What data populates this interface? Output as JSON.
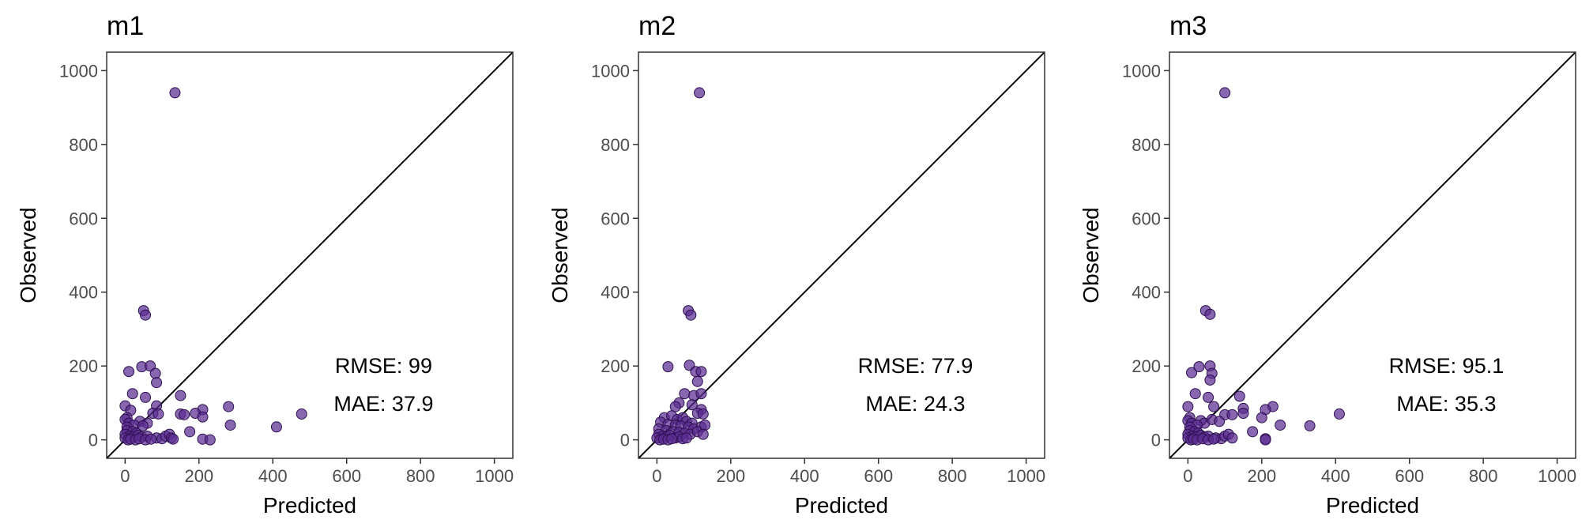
{
  "chart_data": [
    {
      "type": "scatter",
      "title": "m1",
      "xlabel": "Predicted",
      "ylabel": "Observed",
      "xlim": [
        -50,
        1050
      ],
      "ylim": [
        -50,
        1050
      ],
      "xticks": [
        "0",
        "200",
        "400",
        "600",
        "800",
        "1000"
      ],
      "yticks": [
        "0",
        "200",
        "400",
        "600",
        "800",
        "1000"
      ],
      "reference_line": "y = x",
      "annotations": [
        "RMSE: 99",
        "MAE: 37.9"
      ],
      "point_color": "#5c2c91",
      "points": [
        [
          135,
          940
        ],
        [
          50,
          350
        ],
        [
          55,
          338
        ],
        [
          10,
          185
        ],
        [
          45,
          198
        ],
        [
          68,
          200
        ],
        [
          82,
          180
        ],
        [
          85,
          155
        ],
        [
          20,
          125
        ],
        [
          55,
          115
        ],
        [
          150,
          120
        ],
        [
          85,
          92
        ],
        [
          0,
          92
        ],
        [
          15,
          80
        ],
        [
          280,
          90
        ],
        [
          210,
          82
        ],
        [
          150,
          70
        ],
        [
          160,
          68
        ],
        [
          190,
          72
        ],
        [
          210,
          62
        ],
        [
          5,
          60
        ],
        [
          0,
          55
        ],
        [
          40,
          50
        ],
        [
          60,
          45
        ],
        [
          75,
          72
        ],
        [
          90,
          70
        ],
        [
          10,
          45
        ],
        [
          25,
          40
        ],
        [
          5,
          35
        ],
        [
          48,
          38
        ],
        [
          285,
          40
        ],
        [
          410,
          35
        ],
        [
          478,
          70
        ],
        [
          175,
          22
        ],
        [
          5,
          25
        ],
        [
          20,
          22
        ],
        [
          30,
          18
        ],
        [
          0,
          15
        ],
        [
          12,
          10
        ],
        [
          22,
          8
        ],
        [
          35,
          12
        ],
        [
          45,
          8
        ],
        [
          60,
          10
        ],
        [
          85,
          5
        ],
        [
          100,
          3
        ],
        [
          110,
          10
        ],
        [
          120,
          15
        ],
        [
          125,
          5
        ],
        [
          130,
          2
        ],
        [
          210,
          2
        ],
        [
          230,
          0
        ],
        [
          0,
          5
        ],
        [
          8,
          0
        ],
        [
          15,
          2
        ],
        [
          28,
          0
        ],
        [
          38,
          3
        ],
        [
          55,
          0
        ],
        [
          70,
          2
        ]
      ]
    },
    {
      "type": "scatter",
      "title": "m2",
      "xlabel": "Predicted",
      "ylabel": "Observed",
      "xlim": [
        -50,
        1050
      ],
      "ylim": [
        -50,
        1050
      ],
      "xticks": [
        "0",
        "200",
        "400",
        "600",
        "800",
        "1000"
      ],
      "yticks": [
        "0",
        "200",
        "400",
        "600",
        "800",
        "1000"
      ],
      "reference_line": "y = x",
      "annotations": [
        "RMSE: 77.9",
        "MAE: 24.3"
      ],
      "point_color": "#5c2c91",
      "points": [
        [
          115,
          940
        ],
        [
          85,
          350
        ],
        [
          92,
          338
        ],
        [
          30,
          198
        ],
        [
          88,
          202
        ],
        [
          105,
          185
        ],
        [
          120,
          185
        ],
        [
          110,
          158
        ],
        [
          75,
          125
        ],
        [
          100,
          120
        ],
        [
          120,
          125
        ],
        [
          60,
          100
        ],
        [
          95,
          95
        ],
        [
          120,
          82
        ],
        [
          50,
          90
        ],
        [
          110,
          72
        ],
        [
          125,
          70
        ],
        [
          20,
          60
        ],
        [
          40,
          65
        ],
        [
          55,
          55
        ],
        [
          70,
          60
        ],
        [
          80,
          50
        ],
        [
          95,
          45
        ],
        [
          10,
          48
        ],
        [
          30,
          42
        ],
        [
          50,
          40
        ],
        [
          65,
          38
        ],
        [
          85,
          35
        ],
        [
          100,
          30
        ],
        [
          120,
          35
        ],
        [
          130,
          40
        ],
        [
          5,
          30
        ],
        [
          25,
          25
        ],
        [
          45,
          22
        ],
        [
          60,
          20
        ],
        [
          75,
          18
        ],
        [
          90,
          15
        ],
        [
          110,
          22
        ],
        [
          125,
          15
        ],
        [
          5,
          15
        ],
        [
          15,
          10
        ],
        [
          25,
          8
        ],
        [
          35,
          12
        ],
        [
          50,
          5
        ],
        [
          60,
          8
        ],
        [
          70,
          3
        ],
        [
          80,
          5
        ],
        [
          0,
          5
        ],
        [
          8,
          0
        ],
        [
          18,
          2
        ],
        [
          30,
          0
        ],
        [
          40,
          3
        ]
      ]
    },
    {
      "type": "scatter",
      "title": "m3",
      "xlabel": "Predicted",
      "ylabel": "Observed",
      "xlim": [
        -50,
        1050
      ],
      "ylim": [
        -50,
        1050
      ],
      "xticks": [
        "0",
        "200",
        "400",
        "600",
        "800",
        "1000"
      ],
      "yticks": [
        "0",
        "200",
        "400",
        "600",
        "800",
        "1000"
      ],
      "reference_line": "y = x",
      "annotations": [
        "RMSE: 95.1",
        "MAE: 35.3"
      ],
      "point_color": "#5c2c91",
      "points": [
        [
          100,
          940
        ],
        [
          48,
          350
        ],
        [
          60,
          340
        ],
        [
          10,
          182
        ],
        [
          30,
          198
        ],
        [
          60,
          200
        ],
        [
          65,
          180
        ],
        [
          60,
          162
        ],
        [
          20,
          125
        ],
        [
          55,
          115
        ],
        [
          140,
          118
        ],
        [
          70,
          90
        ],
        [
          0,
          90
        ],
        [
          230,
          90
        ],
        [
          210,
          82
        ],
        [
          150,
          85
        ],
        [
          150,
          72
        ],
        [
          100,
          68
        ],
        [
          120,
          68
        ],
        [
          200,
          60
        ],
        [
          5,
          60
        ],
        [
          0,
          52
        ],
        [
          35,
          52
        ],
        [
          45,
          45
        ],
        [
          65,
          55
        ],
        [
          85,
          50
        ],
        [
          10,
          45
        ],
        [
          25,
          40
        ],
        [
          5,
          35
        ],
        [
          250,
          40
        ],
        [
          330,
          38
        ],
        [
          410,
          70
        ],
        [
          175,
          22
        ],
        [
          5,
          25
        ],
        [
          18,
          22
        ],
        [
          28,
          18
        ],
        [
          0,
          15
        ],
        [
          12,
          10
        ],
        [
          22,
          8
        ],
        [
          35,
          12
        ],
        [
          45,
          8
        ],
        [
          55,
          10
        ],
        [
          75,
          5
        ],
        [
          90,
          3
        ],
        [
          100,
          10
        ],
        [
          110,
          15
        ],
        [
          120,
          5
        ],
        [
          210,
          3
        ],
        [
          210,
          0
        ],
        [
          0,
          5
        ],
        [
          8,
          0
        ],
        [
          15,
          2
        ],
        [
          25,
          0
        ],
        [
          40,
          3
        ],
        [
          55,
          0
        ],
        [
          70,
          2
        ]
      ]
    }
  ]
}
